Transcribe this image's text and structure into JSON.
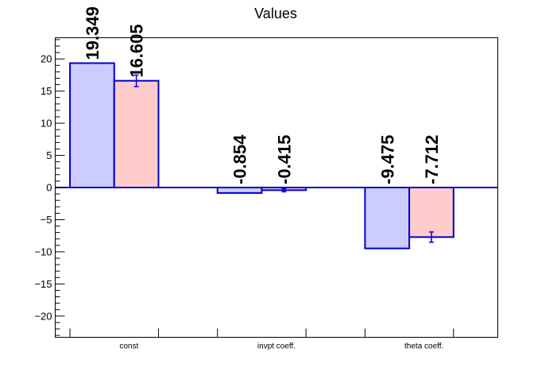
{
  "chart_data": {
    "type": "bar",
    "title": "Values",
    "categories": [
      "const",
      "invpt coeff.",
      "theta coeff."
    ],
    "series": [
      {
        "values": [
          19.349,
          -0.854,
          -9.475
        ],
        "errors": [
          0,
          0,
          0
        ],
        "fill": "#ccccff",
        "stroke": "#0000cc"
      },
      {
        "values": [
          16.605,
          -0.415,
          -7.712
        ],
        "errors": [
          0.9,
          0.25,
          0.8
        ],
        "fill": "#ffcccc",
        "stroke": "#0000cc"
      }
    ],
    "value_labels": [
      [
        "19.349",
        "-0.854",
        "-9.475"
      ],
      [
        "16.605",
        "-0.415",
        "-7.712"
      ]
    ],
    "yticks": [
      -20,
      -15,
      -10,
      -5,
      0,
      5,
      10,
      15,
      20
    ],
    "ytick_labels": [
      "−20",
      "−15",
      "−10",
      "−5",
      "0",
      "5",
      "10",
      "15",
      "20"
    ],
    "ylim": [
      -23.3,
      23.3
    ],
    "zero_line_color": "#0000cc",
    "grid": false
  }
}
